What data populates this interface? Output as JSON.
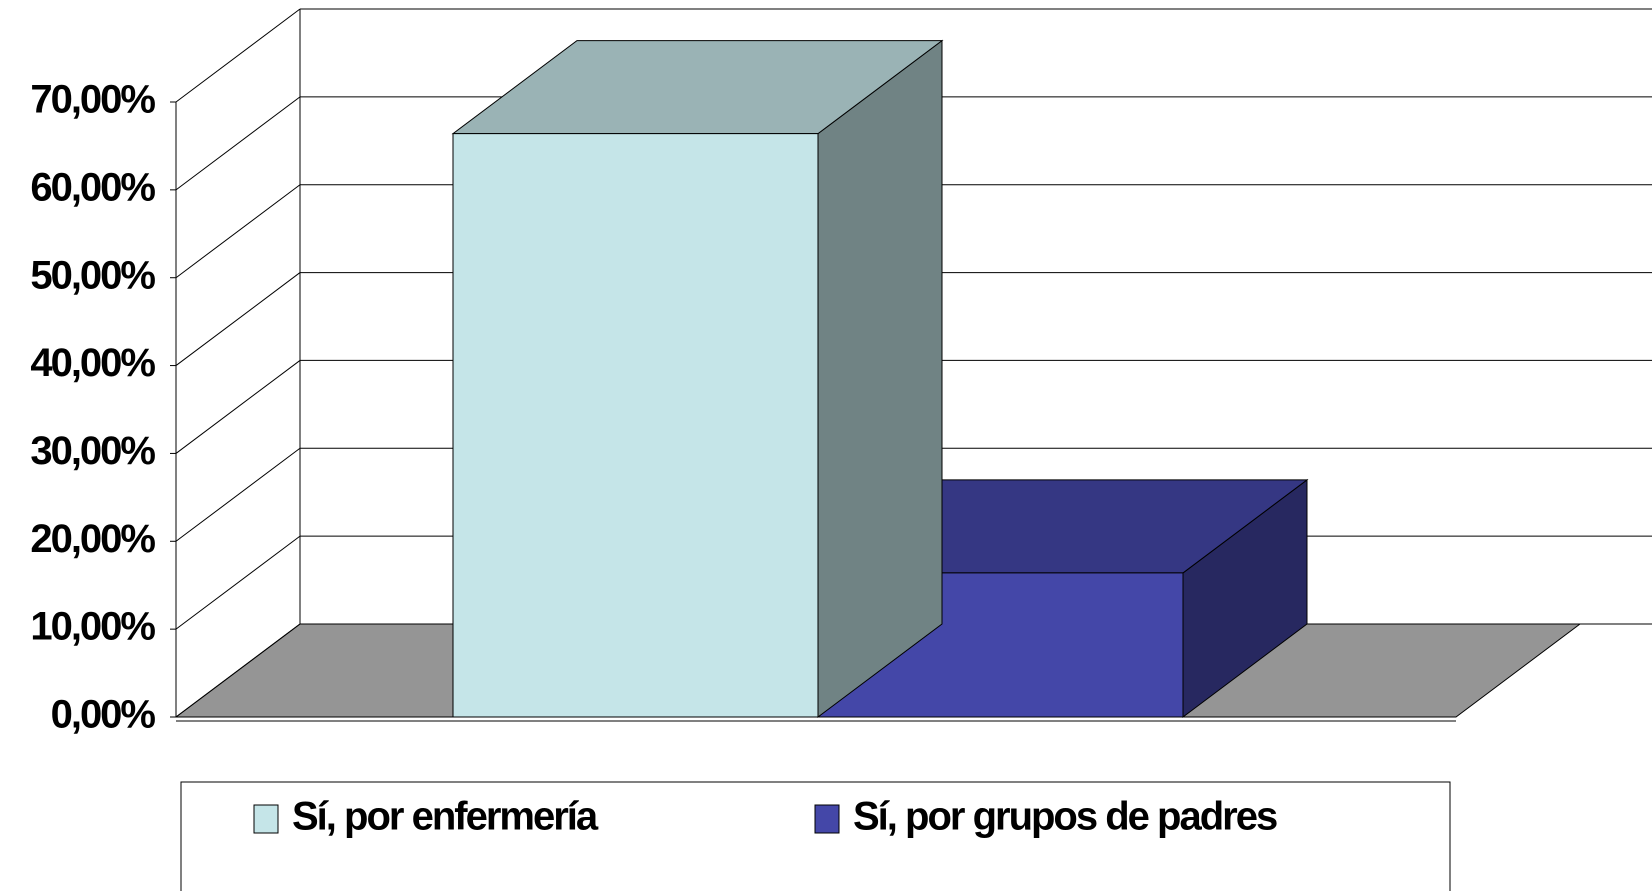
{
  "chart_data": {
    "type": "bar3d",
    "categories": [
      null
    ],
    "series": [
      {
        "name": "Sí, por enfermería",
        "color": "#c5e5e8",
        "values": [
          66.4
        ]
      },
      {
        "name": "Sí, por grupos de padres",
        "color": "#4447a8",
        "values": [
          16.4
        ]
      }
    ],
    "ylim": [
      0,
      70
    ],
    "yticks": [
      {
        "value": 0,
        "label": "0,00%"
      },
      {
        "value": 10,
        "label": "10,00%"
      },
      {
        "value": 20,
        "label": "20,00%"
      },
      {
        "value": 30,
        "label": "30,00%"
      },
      {
        "value": 40,
        "label": "40,00%"
      },
      {
        "value": 50,
        "label": "50,00%"
      },
      {
        "value": 60,
        "label": "60,00%"
      },
      {
        "value": 70,
        "label": "70,00%"
      }
    ],
    "grid": true,
    "legend": "bottom"
  }
}
